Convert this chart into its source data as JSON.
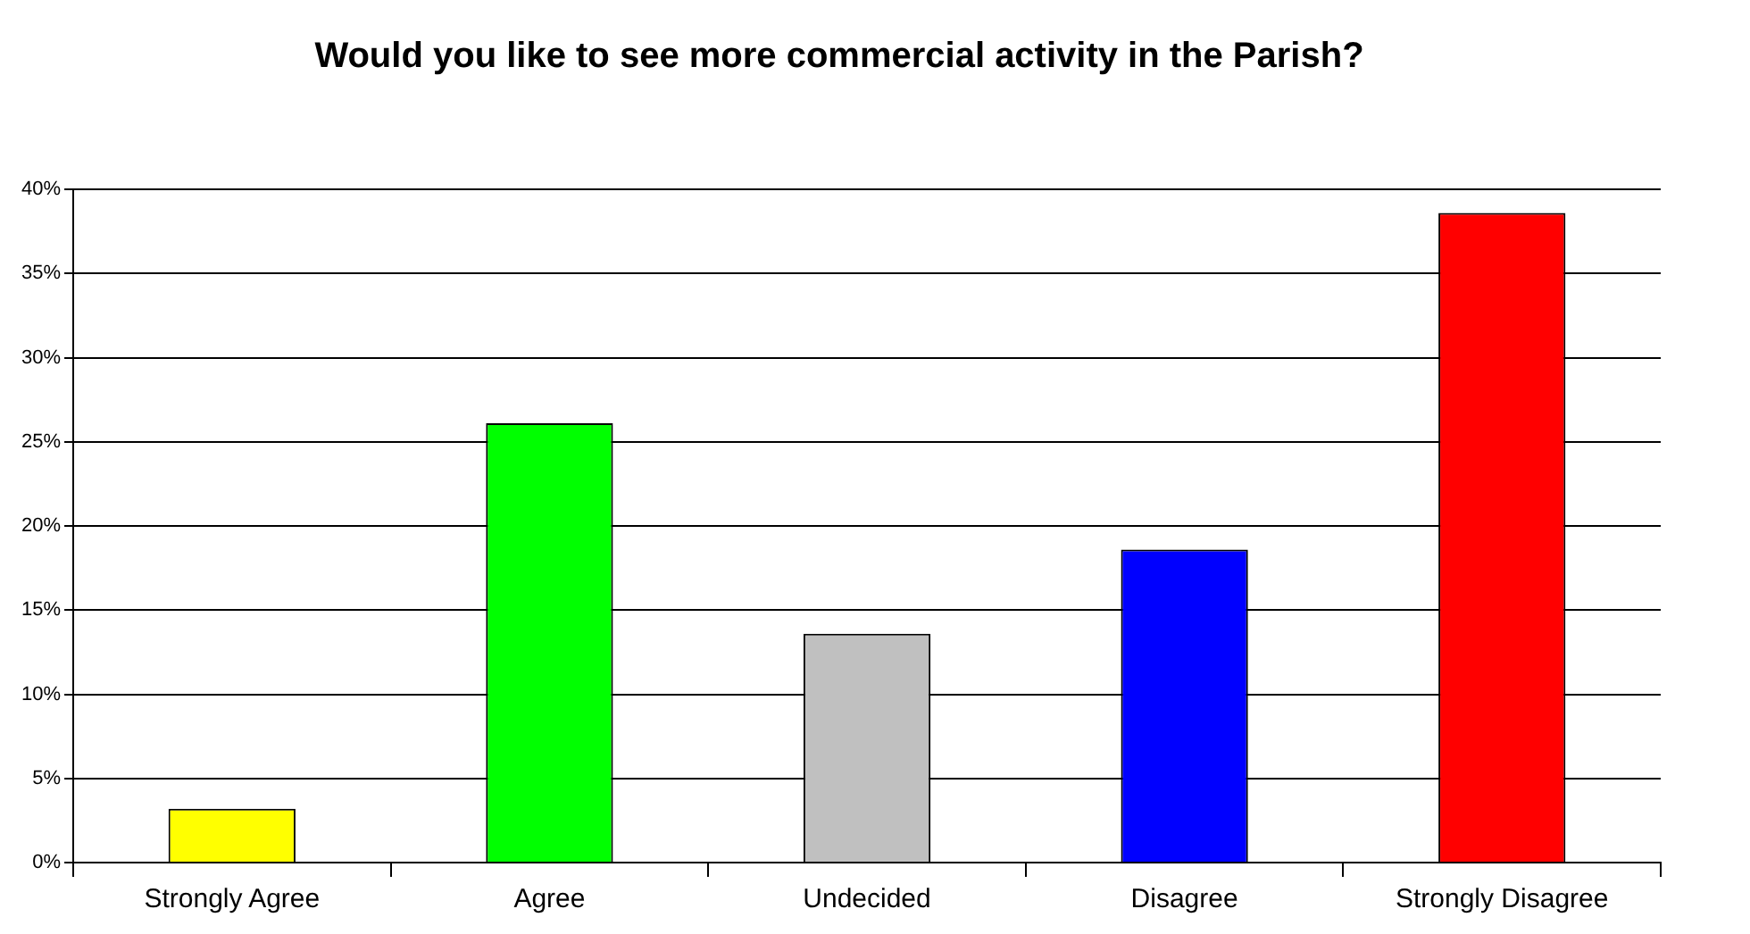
{
  "chart_data": {
    "type": "bar",
    "title": "Would you like to see more commercial activity in the Parish?",
    "categories": [
      "Strongly Agree",
      "Agree",
      "Undecided",
      "Disagree",
      "Strongly Disagree"
    ],
    "values": [
      3.2,
      26.1,
      13.6,
      18.6,
      38.6
    ],
    "colors": [
      "#ffff00",
      "#00ff00",
      "#c0c0c0",
      "#0000ff",
      "#ff0000"
    ],
    "ylim": [
      0,
      40
    ],
    "yticks": [
      {
        "value": 0,
        "label": "0%"
      },
      {
        "value": 5,
        "label": "5%"
      },
      {
        "value": 10,
        "label": "10%"
      },
      {
        "value": 15,
        "label": "15%"
      },
      {
        "value": 20,
        "label": "20%"
      },
      {
        "value": 25,
        "label": "25%"
      },
      {
        "value": 30,
        "label": "30%"
      },
      {
        "value": 35,
        "label": "35%"
      },
      {
        "value": 40,
        "label": "40%"
      }
    ],
    "grid": "y"
  }
}
